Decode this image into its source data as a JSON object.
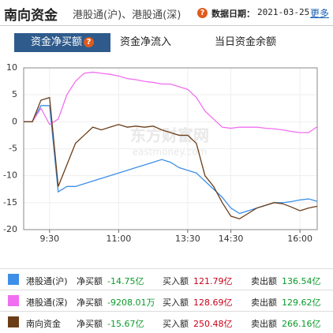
{
  "header": {
    "title": "南向资金",
    "subtitle": "港股通(沪)、港股通(深)",
    "help": "?",
    "date_label": "数据日期：",
    "date": "2021-03-25",
    "more": "更多"
  },
  "tabs": [
    {
      "label": "资金净买额",
      "help": "?"
    },
    {
      "label": "资金净流入"
    },
    {
      "label": "当日资金余额"
    }
  ],
  "watermark": {
    "name": "东方财富网",
    "site": "eastmoney.com"
  },
  "chart_data": {
    "type": "line",
    "categories": [
      null,
      null,
      null,
      "9:30",
      null,
      null,
      null,
      null,
      null,
      null,
      null,
      "11:00",
      null,
      null,
      null,
      null,
      null,
      null,
      null,
      "13:30",
      null,
      null,
      null,
      null,
      "14:30",
      null,
      null,
      null,
      null,
      null,
      null,
      null,
      "16:00",
      null,
      null
    ],
    "series": [
      {
        "name": "港股通(沪)",
        "color": "#3d8fe8",
        "values": [
          0,
          0,
          3,
          3,
          -13,
          -12,
          -12,
          -11.5,
          -11,
          -10.5,
          -10,
          -9.5,
          -9,
          -8.5,
          -8,
          -7.5,
          -7,
          -7.5,
          -8.5,
          -9,
          -9.5,
          -11,
          -12.5,
          -14,
          -16,
          -17,
          -16.5,
          -16,
          -15.5,
          -15,
          -15,
          -14.8,
          -14.5,
          -14.3,
          -14.75
        ]
      },
      {
        "name": "港股通(深)",
        "color": "#f06ef0",
        "values": [
          0,
          0,
          2.5,
          -0.5,
          0.5,
          5,
          7.5,
          9,
          9.2,
          9,
          8.8,
          8.5,
          8,
          7.8,
          7.5,
          7.3,
          7,
          7,
          6.5,
          6,
          4.5,
          2,
          0.5,
          -1,
          -1.2,
          -1,
          -1,
          -1,
          -1.2,
          -1.3,
          -1.5,
          -1.8,
          -2,
          -2,
          -0.92
        ]
      },
      {
        "name": "南向资金",
        "color": "#6b3d17",
        "values": [
          0,
          0,
          4,
          4.5,
          -12,
          -8,
          -4,
          -2.5,
          -1,
          -1.5,
          -1,
          -0.5,
          -1,
          -0.8,
          -1,
          -0.8,
          -1.5,
          -2,
          -2.5,
          -2.5,
          -4,
          -10,
          -12,
          -15,
          -17.5,
          -18,
          -17,
          -16,
          -15.5,
          -15,
          -15.2,
          -15.8,
          -16.5,
          -16,
          -15.67
        ]
      }
    ],
    "ylim": [
      -20,
      10
    ],
    "yticks": [
      10,
      5,
      0,
      -5,
      -10,
      -15,
      -20
    ],
    "grid": true
  },
  "legend_rows": [
    {
      "net_label": "净买额",
      "net": "-14.75亿",
      "buy_label": "买入额",
      "buy": "121.79亿",
      "sell_label": "卖出额",
      "sell": "136.54亿"
    },
    {
      "net_label": "净买额",
      "net": "-9208.01万",
      "buy_label": "买入额",
      "buy": "128.69亿",
      "sell_label": "卖出额",
      "sell": "129.62亿"
    },
    {
      "net_label": "净买额",
      "net": "-15.67亿",
      "buy_label": "买入额",
      "buy": "250.48亿",
      "sell_label": "卖出额",
      "sell": "266.16亿"
    }
  ]
}
